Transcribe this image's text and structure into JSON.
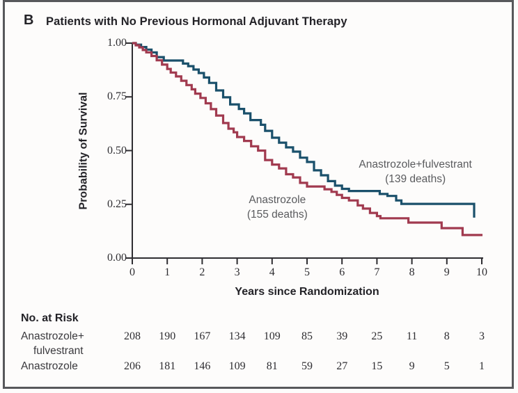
{
  "panel": {
    "letter": "B",
    "title": "Patients with No Previous Hormonal Adjuvant Therapy"
  },
  "colors": {
    "anastrozole_fulvestrant": "#1a506b",
    "anastrozole": "#a13a4f",
    "axis": "#2e2d31",
    "frame": "#57585b",
    "annotation_text": "#5a5b5e"
  },
  "chart_data": {
    "type": "line",
    "subtype": "kaplan-meier-step",
    "xlabel": "Years since Randomization",
    "ylabel": "Probability of Survival",
    "xlim": [
      0,
      10
    ],
    "ylim": [
      0.0,
      1.0
    ],
    "xticks": [
      "0",
      "1",
      "2",
      "3",
      "4",
      "5",
      "6",
      "7",
      "8",
      "9",
      "10"
    ],
    "yticks": [
      "1.00",
      "0.75",
      "0.50",
      "0.25",
      "0.00"
    ],
    "grid": false,
    "legend_position": "inline-annotations",
    "series": [
      {
        "name": "Anastrozole+fulvestrant",
        "deaths": 139,
        "color_key": "anastrozole_fulvestrant",
        "points": [
          [
            0,
            1
          ],
          [
            0.1,
            0.993
          ],
          [
            0.25,
            0.982
          ],
          [
            0.4,
            0.97
          ],
          [
            0.55,
            0.957
          ],
          [
            0.7,
            0.935
          ],
          [
            0.9,
            0.919
          ],
          [
            1.45,
            0.905
          ],
          [
            1.6,
            0.893
          ],
          [
            1.75,
            0.877
          ],
          [
            1.9,
            0.861
          ],
          [
            2.05,
            0.84
          ],
          [
            2.2,
            0.815
          ],
          [
            2.4,
            0.78
          ],
          [
            2.6,
            0.748
          ],
          [
            2.8,
            0.715
          ],
          [
            3.05,
            0.694
          ],
          [
            3.2,
            0.673
          ],
          [
            3.38,
            0.642
          ],
          [
            3.68,
            0.62
          ],
          [
            3.8,
            0.592
          ],
          [
            4,
            0.56
          ],
          [
            4.2,
            0.537
          ],
          [
            4.4,
            0.515
          ],
          [
            4.6,
            0.495
          ],
          [
            4.8,
            0.467
          ],
          [
            5,
            0.447
          ],
          [
            5.2,
            0.408
          ],
          [
            5.4,
            0.385
          ],
          [
            5.6,
            0.358
          ],
          [
            5.8,
            0.337
          ],
          [
            6,
            0.322
          ],
          [
            6.2,
            0.312
          ],
          [
            7.08,
            0.298
          ],
          [
            7.3,
            0.289
          ],
          [
            7.55,
            0.268
          ],
          [
            7.7,
            0.252
          ],
          [
            9.78,
            0.188
          ]
        ]
      },
      {
        "name": "Anastrozole",
        "deaths": 155,
        "color_key": "anastrozole",
        "points": [
          [
            0,
            1
          ],
          [
            0.1,
            0.99
          ],
          [
            0.2,
            0.98
          ],
          [
            0.3,
            0.968
          ],
          [
            0.4,
            0.957
          ],
          [
            0.55,
            0.94
          ],
          [
            0.7,
            0.92
          ],
          [
            0.85,
            0.9
          ],
          [
            1,
            0.88
          ],
          [
            1.1,
            0.863
          ],
          [
            1.25,
            0.845
          ],
          [
            1.4,
            0.825
          ],
          [
            1.55,
            0.805
          ],
          [
            1.7,
            0.785
          ],
          [
            1.8,
            0.765
          ],
          [
            1.95,
            0.745
          ],
          [
            2.1,
            0.72
          ],
          [
            2.25,
            0.693
          ],
          [
            2.4,
            0.663
          ],
          [
            2.6,
            0.628
          ],
          [
            2.75,
            0.602
          ],
          [
            2.9,
            0.585
          ],
          [
            3,
            0.563
          ],
          [
            3.2,
            0.545
          ],
          [
            3.4,
            0.52
          ],
          [
            3.6,
            0.5
          ],
          [
            3.8,
            0.456
          ],
          [
            4,
            0.435
          ],
          [
            4.2,
            0.417
          ],
          [
            4.4,
            0.39
          ],
          [
            4.6,
            0.375
          ],
          [
            4.8,
            0.35
          ],
          [
            5,
            0.333
          ],
          [
            5.5,
            0.32
          ],
          [
            5.7,
            0.308
          ],
          [
            5.85,
            0.294
          ],
          [
            6,
            0.28
          ],
          [
            6.2,
            0.268
          ],
          [
            6.45,
            0.245
          ],
          [
            6.6,
            0.23
          ],
          [
            6.8,
            0.21
          ],
          [
            7,
            0.195
          ],
          [
            7.1,
            0.185
          ],
          [
            7.9,
            0.165
          ],
          [
            8.85,
            0.139
          ],
          [
            9.45,
            0.107
          ],
          [
            10.02,
            0.107
          ]
        ]
      }
    ],
    "annotations": [
      {
        "lines": [
          "Anastrozole+fulvestrant",
          "(139 deaths)"
        ],
        "x_year": 8.1,
        "y_prob": 0.4
      },
      {
        "lines": [
          "Anastrozole",
          "(155 deaths)"
        ],
        "x_year": 4.15,
        "y_prob": 0.235
      }
    ]
  },
  "risk_table": {
    "title": "No. at Risk",
    "rows": [
      {
        "label_lines": [
          "Anastrozole+",
          "fulvestrant"
        ],
        "values": [
          "208",
          "190",
          "167",
          "134",
          "109",
          "85",
          "39",
          "25",
          "11",
          "8",
          "3"
        ]
      },
      {
        "label_lines": [
          "Anastrozole"
        ],
        "values": [
          "206",
          "181",
          "146",
          "109",
          "81",
          "59",
          "27",
          "15",
          "9",
          "5",
          "1"
        ]
      }
    ]
  }
}
